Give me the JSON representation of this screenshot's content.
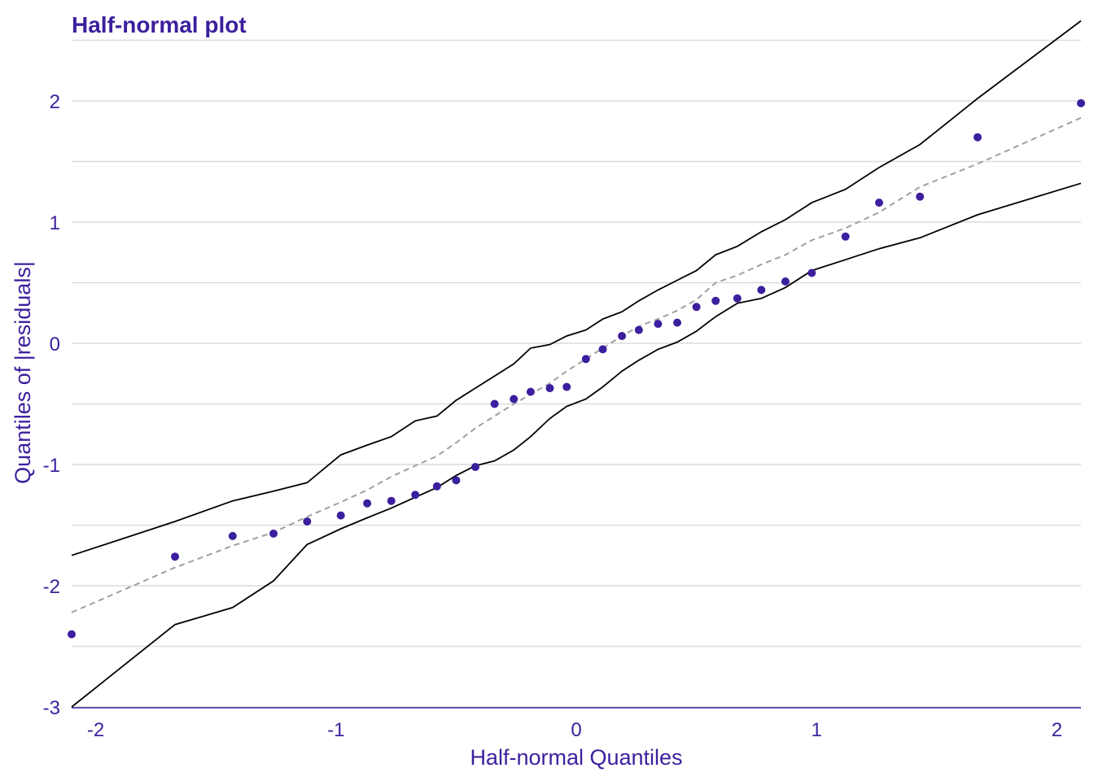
{
  "chart_data": {
    "type": "scatter",
    "title": "Half-normal plot",
    "xlabel": "Half-normal Quantiles",
    "ylabel": "Quantiles of |residuals|",
    "xlim": [
      -2.1,
      2.1
    ],
    "ylim": [
      -3.0,
      2.55
    ],
    "x_ticks": [
      -2,
      -1,
      0,
      1,
      2
    ],
    "x_tick_labels": [
      "-2",
      "-1",
      "0",
      "1",
      "2"
    ],
    "y_ticks": [
      -3,
      -2,
      -1,
      0,
      1,
      2
    ],
    "y_tick_labels": [
      "-3",
      "-2",
      "-1",
      "0",
      "1",
      "2"
    ],
    "grid": "horizontal",
    "colors": {
      "points": "#3c1f9e",
      "text": "#3c1f9e",
      "envelope": "#000000",
      "median": "#a0a0a0",
      "grid": "#dcdcdc"
    },
    "points": {
      "x": [
        -2.1,
        -1.67,
        -1.43,
        -1.26,
        -1.12,
        -0.98,
        -0.87,
        -0.77,
        -0.67,
        -0.58,
        -0.5,
        -0.42,
        -0.34,
        -0.26,
        -0.19,
        -0.11,
        -0.04,
        0.04,
        0.11,
        0.19,
        0.26,
        0.34,
        0.42,
        0.5,
        0.58,
        0.67,
        0.77,
        0.87,
        0.98,
        1.12,
        1.26,
        1.43,
        1.67,
        2.1
      ],
      "y": [
        -2.4,
        -1.76,
        -1.59,
        -1.57,
        -1.47,
        -1.42,
        -1.32,
        -1.3,
        -1.25,
        -1.18,
        -1.13,
        -1.02,
        -0.5,
        -0.46,
        -0.4,
        -0.37,
        -0.36,
        -0.13,
        -0.05,
        0.06,
        0.11,
        0.16,
        0.17,
        0.3,
        0.35,
        0.37,
        0.44,
        0.51,
        0.58,
        0.88,
        1.16,
        1.21,
        1.7,
        1.98
      ]
    },
    "series": [
      {
        "x": [
          -2.1,
          -1.67,
          -1.43,
          -1.26,
          -1.12,
          -0.98,
          -0.87,
          -0.77,
          -0.67,
          -0.58,
          -0.5,
          -0.42,
          -0.34,
          -0.26,
          -0.19,
          -0.11,
          -0.04,
          0.04,
          0.11,
          0.19,
          0.26,
          0.34,
          0.42,
          0.5,
          0.58,
          0.67,
          0.77,
          0.87,
          0.98,
          1.12,
          1.26,
          1.43,
          1.67,
          2.1
        ],
        "y": [
          -1.75,
          -1.47,
          -1.3,
          -1.22,
          -1.15,
          -0.92,
          -0.84,
          -0.77,
          -0.64,
          -0.6,
          -0.47,
          -0.37,
          -0.27,
          -0.17,
          -0.04,
          -0.01,
          0.06,
          0.11,
          0.2,
          0.26,
          0.35,
          0.44,
          0.52,
          0.6,
          0.73,
          0.8,
          0.92,
          1.02,
          1.16,
          1.27,
          1.45,
          1.64,
          2.02,
          2.66
        ]
      },
      {
        "x": [
          -2.1,
          -1.67,
          -1.43,
          -1.26,
          -1.12,
          -0.98,
          -0.87,
          -0.77,
          -0.67,
          -0.58,
          -0.5,
          -0.42,
          -0.34,
          -0.26,
          -0.19,
          -0.11,
          -0.04,
          0.04,
          0.11,
          0.19,
          0.26,
          0.34,
          0.42,
          0.5,
          0.58,
          0.67,
          0.77,
          0.87,
          0.98,
          1.12,
          1.26,
          1.43,
          1.67,
          2.1
        ],
        "y": [
          -2.22,
          -1.85,
          -1.67,
          -1.56,
          -1.43,
          -1.31,
          -1.21,
          -1.1,
          -1.01,
          -0.93,
          -0.82,
          -0.7,
          -0.6,
          -0.5,
          -0.42,
          -0.33,
          -0.23,
          -0.13,
          -0.04,
          0.06,
          0.14,
          0.2,
          0.27,
          0.36,
          0.5,
          0.56,
          0.65,
          0.73,
          0.85,
          0.95,
          1.08,
          1.29,
          1.48,
          1.86
        ]
      },
      {
        "x": [
          -2.1,
          -1.67,
          -1.43,
          -1.26,
          -1.12,
          -0.98,
          -0.87,
          -0.77,
          -0.67,
          -0.58,
          -0.5,
          -0.42,
          -0.34,
          -0.26,
          -0.19,
          -0.11,
          -0.04,
          0.04,
          0.11,
          0.19,
          0.26,
          0.34,
          0.42,
          0.5,
          0.58,
          0.67,
          0.77,
          0.87,
          0.98,
          1.12,
          1.26,
          1.43,
          1.67,
          2.1
        ],
        "y": [
          -3.0,
          -2.32,
          -2.18,
          -1.96,
          -1.66,
          -1.53,
          -1.44,
          -1.36,
          -1.27,
          -1.19,
          -1.09,
          -1.01,
          -0.97,
          -0.88,
          -0.77,
          -0.62,
          -0.52,
          -0.46,
          -0.36,
          -0.23,
          -0.14,
          -0.05,
          0.01,
          0.1,
          0.22,
          0.33,
          0.37,
          0.46,
          0.6,
          0.69,
          0.78,
          0.87,
          1.06,
          1.32
        ]
      }
    ]
  }
}
